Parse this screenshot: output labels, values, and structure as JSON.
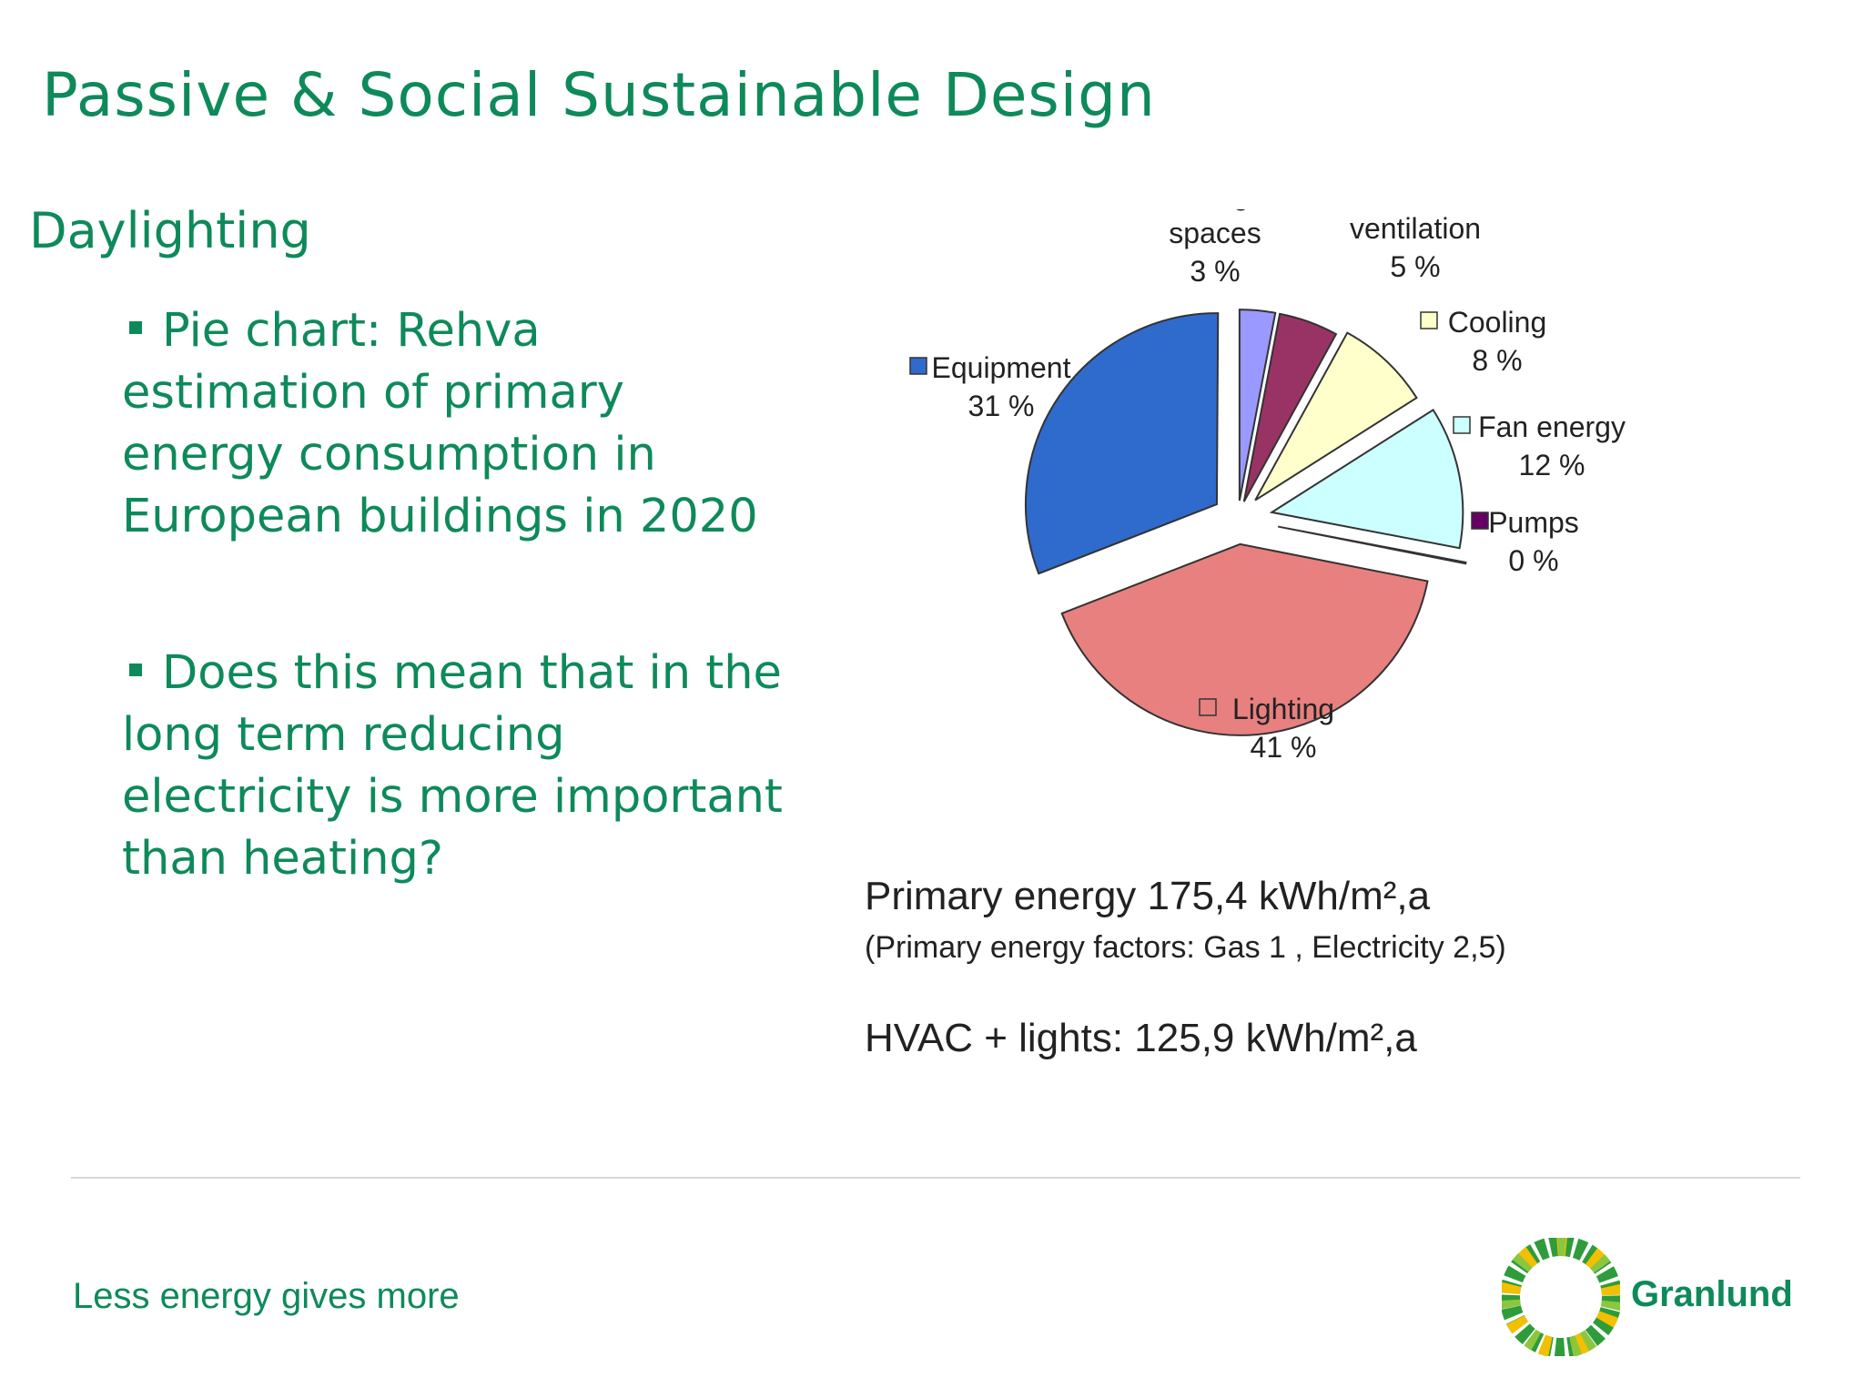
{
  "slide": {
    "title": "Passive & Social Sustainable Design",
    "heading": "Daylighting",
    "bullets": [
      "Pie chart: Rehva estimation of primary energy consumption in European buildings in 2020",
      "Does this mean that in the long term reducing electricity is more important than heating?"
    ],
    "notes": {
      "primary_energy": "Primary energy 175,4 kWh/m²,a",
      "factors": "(Primary energy factors: Gas 1 , Electricity 2,5)",
      "hvac": "HVAC + lights: 125,9 kWh/m²,a"
    },
    "footer": {
      "tagline": "Less energy gives more",
      "brand": "Granlund"
    }
  },
  "chart_data": {
    "type": "pie",
    "title": "",
    "slices": [
      {
        "label": "Heating of spaces",
        "value_label": "3 %",
        "value": 3,
        "color": "#9999ff"
      },
      {
        "label": "Heating of ventilation",
        "value_label": "5 %",
        "value": 5,
        "color": "#993366"
      },
      {
        "label": "Cooling",
        "value_label": "8 %",
        "value": 8,
        "color": "#ffffcc"
      },
      {
        "label": "Fan energy",
        "value_label": "12 %",
        "value": 12,
        "color": "#ccffff"
      },
      {
        "label": "Pumps",
        "value_label": "0 %",
        "value": 0,
        "color": "#660066"
      },
      {
        "label": "Lighting",
        "value_label": "41 %",
        "value": 41,
        "color": "#e88080"
      },
      {
        "label": "Equipment",
        "value_label": "31 %",
        "value": 31,
        "color": "#2f6bcc"
      }
    ]
  }
}
